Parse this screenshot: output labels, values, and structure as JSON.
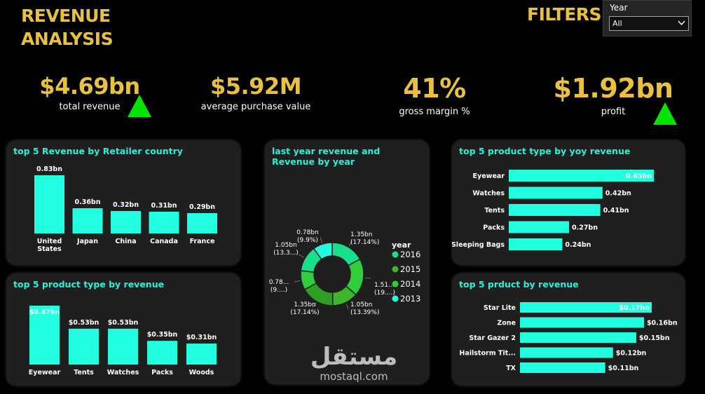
{
  "header": {
    "title_line1": "REVENUE",
    "title_line2": "ANALYSIS",
    "filters_title": "FILTERS"
  },
  "filter": {
    "label": "Year",
    "value": "All"
  },
  "kpis": [
    {
      "value": "$4.69bn",
      "label": "total revenue",
      "trend": "up"
    },
    {
      "value": "$5.92M",
      "label": "average purchase value"
    },
    {
      "value": "41%",
      "label": "gross margin %"
    },
    {
      "value": "$1.92bn",
      "label": "profit",
      "trend": "up"
    }
  ],
  "colors": {
    "accent": "#e8c140",
    "bar": "#22ffe0",
    "title": "#27f2d8",
    "card": "#1f1f1f",
    "up": "#00e400"
  },
  "chart_data": [
    {
      "type": "bar",
      "title": "top 5 Revenue by Retailer country",
      "categories": [
        "United States",
        "Japan",
        "China",
        "Canada",
        "France"
      ],
      "values": [
        0.83,
        0.36,
        0.32,
        0.31,
        0.29
      ],
      "labels": [
        "0.83bn",
        "0.36bn",
        "0.32bn",
        "0.31bn",
        "0.29bn"
      ]
    },
    {
      "type": "bar",
      "title": "top 5 product type by revenue",
      "categories": [
        "Eyewear",
        "Tents",
        "Watches",
        "Packs",
        "Woods"
      ],
      "values": [
        0.87,
        0.53,
        0.53,
        0.35,
        0.31
      ],
      "labels": [
        "$0.87bn",
        "$0.53bn",
        "$0.53bn",
        "$0.35bn",
        "$0.31bn"
      ]
    },
    {
      "type": "pie",
      "title": "last year revenue and Revenue by year",
      "legend_title": "year",
      "legend": [
        {
          "name": "2016",
          "color": "#18e08a"
        },
        {
          "name": "2015",
          "color": "#3fb52c"
        },
        {
          "name": "2014",
          "color": "#2fce3a"
        },
        {
          "name": "2013",
          "color": "#22ffe0"
        }
      ],
      "slices": [
        {
          "label": "1.35bn",
          "pct": "(17.14%)",
          "value": 1.35,
          "color": "#18e08a"
        },
        {
          "label": "1.51...",
          "pct": "(19....)",
          "value": 1.51,
          "color": "#2fce3a"
        },
        {
          "label": "1.05bn",
          "pct": "(13.39%)",
          "value": 1.05,
          "color": "#3fb52c"
        },
        {
          "label": "1.35bn",
          "pct": "(17.14%)",
          "value": 1.35,
          "color": "#2e9f24"
        },
        {
          "label": "0.78...",
          "pct": "(9....)",
          "value": 0.78,
          "color": "#2fce3a"
        },
        {
          "label": "1.05bn",
          "pct": "(13.3...)",
          "value": 1.05,
          "color": "#18e08a"
        },
        {
          "label": "0.78bn",
          "pct": "(9.9%)",
          "value": 0.78,
          "color": "#22ffe0"
        }
      ]
    },
    {
      "type": "bar",
      "title": "top 5 product type by yoy revenue",
      "orientation": "horizontal",
      "categories": [
        "Eyewear",
        "Watches",
        "Tents",
        "Packs",
        "Sleeping Bags"
      ],
      "values": [
        0.65,
        0.42,
        0.41,
        0.27,
        0.24
      ],
      "labels": [
        "0.65bn",
        "0.42bn",
        "0.41bn",
        "0.27bn",
        "0.24bn"
      ]
    },
    {
      "type": "bar",
      "title": "top 5 prduct by revenue",
      "orientation": "horizontal",
      "categories": [
        "Star Lite",
        "Zone",
        "Star Gazer 2",
        "Hailstorm Tit...",
        "TX"
      ],
      "values": [
        0.17,
        0.16,
        0.15,
        0.12,
        0.11
      ],
      "labels": [
        "$0.17bn",
        "$0.16bn",
        "$0.15bn",
        "$0.12bn",
        "$0.11bn"
      ]
    }
  ],
  "watermark": {
    "arabic": "مستقل",
    "latin": "mostaql.com"
  }
}
